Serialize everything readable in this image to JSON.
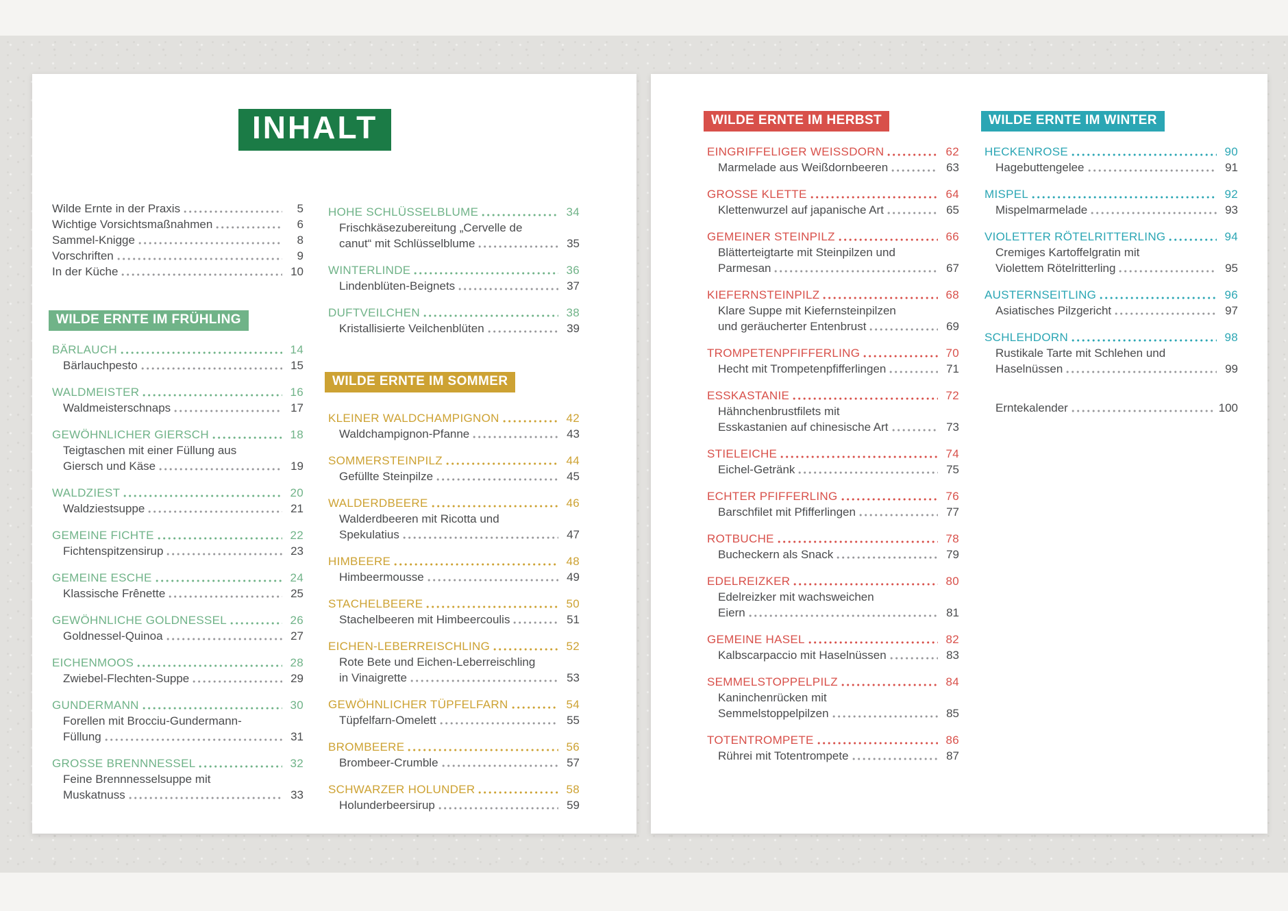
{
  "title": "INHALT",
  "colors": {
    "title_bg": "#1b7b46",
    "spring": "#70b388",
    "summer": "#cda233",
    "autumn": "#d8504a",
    "winter": "#2ba6b4",
    "body_text": "#4a4b4d",
    "recipe_dots": "#98989b"
  },
  "intro": {
    "items": [
      {
        "label": "Wilde Ernte in der Praxis",
        "page": "5"
      },
      {
        "label": "Wichtige Vorsichtsmaßnahmen",
        "page": "6"
      },
      {
        "label": "Sammel-Knigge",
        "page": "8"
      },
      {
        "label": "Vorschriften",
        "page": "9"
      },
      {
        "label": "In der Küche",
        "page": "10"
      }
    ]
  },
  "sections": [
    {
      "id": "fruehling",
      "title": "WILDE ERNTE IM FRÜHLING",
      "color": "#70b388",
      "entries": [
        {
          "name": "BÄRLAUCH",
          "page": "14",
          "recipes": [
            {
              "lines": [
                "Bärlauchpesto"
              ],
              "page": "15"
            }
          ]
        },
        {
          "name": "WALDMEISTER",
          "page": "16",
          "recipes": [
            {
              "lines": [
                "Waldmeisterschnaps"
              ],
              "page": "17"
            }
          ]
        },
        {
          "name": "GEWÖHNLICHER GIERSCH",
          "page": "18",
          "recipes": [
            {
              "lines": [
                "Teigtaschen mit einer Füllung aus",
                "Giersch und Käse"
              ],
              "page": "19"
            }
          ]
        },
        {
          "name": "WALDZIEST",
          "page": "20",
          "recipes": [
            {
              "lines": [
                "Waldziestsuppe"
              ],
              "page": "21"
            }
          ]
        },
        {
          "name": "GEMEINE FICHTE",
          "page": "22",
          "recipes": [
            {
              "lines": [
                "Fichtenspitzensirup"
              ],
              "page": "23"
            }
          ]
        },
        {
          "name": "GEMEINE ESCHE",
          "page": "24",
          "recipes": [
            {
              "lines": [
                "Klassische Frênette"
              ],
              "page": "25"
            }
          ]
        },
        {
          "name": "GEWÖHNLICHE GOLDNESSEL",
          "page": "26",
          "recipes": [
            {
              "lines": [
                "Goldnessel-Quinoa"
              ],
              "page": "27"
            }
          ]
        },
        {
          "name": "EICHENMOOS",
          "page": "28",
          "recipes": [
            {
              "lines": [
                "Zwiebel-Flechten-Suppe"
              ],
              "page": "29"
            }
          ]
        },
        {
          "name": "GUNDERMANN",
          "page": "30",
          "recipes": [
            {
              "lines": [
                "Forellen mit Brocciu-Gundermann-",
                "Füllung"
              ],
              "page": "31"
            }
          ]
        },
        {
          "name": "GROSSE BRENNNESSEL",
          "page": "32",
          "recipes": [
            {
              "lines": [
                "Feine Brennnesselsuppe mit",
                "Muskatnuss"
              ],
              "page": "33"
            }
          ]
        },
        {
          "name": "HOHE SCHLÜSSELBLUME",
          "page": "34",
          "recipes": [
            {
              "lines": [
                "Frischkäsezubereitung „Cervelle de",
                "canut“ mit Schlüsselblume"
              ],
              "page": "35"
            }
          ]
        },
        {
          "name": "WINTERLINDE",
          "page": "36",
          "recipes": [
            {
              "lines": [
                "Lindenblüten-Beignets"
              ],
              "page": "37"
            }
          ]
        },
        {
          "name": "DUFTVEILCHEN",
          "page": "38",
          "recipes": [
            {
              "lines": [
                "Kristallisierte Veilchenblüten"
              ],
              "page": "39"
            }
          ]
        }
      ]
    },
    {
      "id": "sommer",
      "title": "WILDE ERNTE IM SOMMER",
      "color": "#cda233",
      "entries": [
        {
          "name": "KLEINER WALDCHAMPIGNON",
          "page": "42",
          "recipes": [
            {
              "lines": [
                "Waldchampignon-Pfanne"
              ],
              "page": "43"
            }
          ]
        },
        {
          "name": "SOMMERSTEINPILZ",
          "page": "44",
          "recipes": [
            {
              "lines": [
                "Gefüllte Steinpilze"
              ],
              "page": "45"
            }
          ]
        },
        {
          "name": "WALDERDBEERE",
          "page": "46",
          "recipes": [
            {
              "lines": [
                "Walderdbeeren mit Ricotta und",
                "Spekulatius"
              ],
              "page": "47"
            }
          ]
        },
        {
          "name": "HIMBEERE",
          "page": "48",
          "recipes": [
            {
              "lines": [
                "Himbeermousse"
              ],
              "page": "49"
            }
          ]
        },
        {
          "name": "STACHELBEERE",
          "page": "50",
          "recipes": [
            {
              "lines": [
                "Stachelbeeren mit Himbeercoulis"
              ],
              "page": "51"
            }
          ]
        },
        {
          "name": "EICHEN-LEBERREISCHLING",
          "page": "52",
          "recipes": [
            {
              "lines": [
                "Rote Bete und Eichen-Leberreischling",
                "in Vinaigrette"
              ],
              "page": "53"
            }
          ]
        },
        {
          "name": "GEWÖHNLICHER TÜPFELFARN",
          "page": "54",
          "recipes": [
            {
              "lines": [
                "Tüpfelfarn-Omelett"
              ],
              "page": "55"
            }
          ]
        },
        {
          "name": "BROMBEERE",
          "page": "56",
          "recipes": [
            {
              "lines": [
                "Brombeer-Crumble"
              ],
              "page": "57"
            }
          ]
        },
        {
          "name": "SCHWARZER HOLUNDER",
          "page": "58",
          "recipes": [
            {
              "lines": [
                "Holunderbeersirup"
              ],
              "page": "59"
            }
          ]
        }
      ]
    },
    {
      "id": "herbst",
      "title": "WILDE ERNTE IM HERBST",
      "color": "#d8504a",
      "entries": [
        {
          "name": "EINGRIFFELIGER WEISSDORN",
          "page": "62",
          "recipes": [
            {
              "lines": [
                "Marmelade aus Weißdornbeeren"
              ],
              "page": "63"
            }
          ]
        },
        {
          "name": "GROSSE KLETTE",
          "page": "64",
          "recipes": [
            {
              "lines": [
                "Klettenwurzel auf japanische Art"
              ],
              "page": "65"
            }
          ]
        },
        {
          "name": "GEMEINER STEINPILZ",
          "page": "66",
          "recipes": [
            {
              "lines": [
                "Blätterteigtarte mit Steinpilzen und",
                "Parmesan"
              ],
              "page": "67"
            }
          ]
        },
        {
          "name": "KIEFERNSTEINPILZ",
          "page": "68",
          "recipes": [
            {
              "lines": [
                "Klare Suppe mit Kiefernsteinpilzen",
                "und geräucherter Entenbrust"
              ],
              "page": "69"
            }
          ]
        },
        {
          "name": "TROMPETENPFIFFERLING",
          "page": "70",
          "recipes": [
            {
              "lines": [
                "Hecht mit Trompetenpfifferlingen"
              ],
              "page": "71"
            }
          ]
        },
        {
          "name": "ESSKASTANIE",
          "page": "72",
          "recipes": [
            {
              "lines": [
                "Hähnchenbrustfilets mit",
                "Esskastanien auf chinesische Art"
              ],
              "page": "73"
            }
          ]
        },
        {
          "name": "STIELEICHE",
          "page": "74",
          "recipes": [
            {
              "lines": [
                "Eichel-Getränk"
              ],
              "page": "75"
            }
          ]
        },
        {
          "name": "ECHTER PFIFFERLING",
          "page": "76",
          "recipes": [
            {
              "lines": [
                "Barschfilet mit Pfifferlingen"
              ],
              "page": "77"
            }
          ]
        },
        {
          "name": "ROTBUCHE",
          "page": "78",
          "recipes": [
            {
              "lines": [
                "Bucheckern als Snack"
              ],
              "page": "79"
            }
          ]
        },
        {
          "name": "EDELREIZKER",
          "page": "80",
          "recipes": [
            {
              "lines": [
                "Edelreizker mit wachsweichen",
                "Eiern"
              ],
              "page": "81"
            }
          ]
        },
        {
          "name": "GEMEINE HASEL",
          "page": "82",
          "recipes": [
            {
              "lines": [
                "Kalbscarpaccio mit Haselnüssen"
              ],
              "page": "83"
            }
          ]
        },
        {
          "name": "SEMMELSTOPPELPILZ",
          "page": "84",
          "recipes": [
            {
              "lines": [
                "Kaninchenrücken mit",
                "Semmelstoppelpilzen"
              ],
              "page": "85"
            }
          ]
        },
        {
          "name": "TOTENTROMPETE",
          "page": "86",
          "recipes": [
            {
              "lines": [
                "Rührei mit Totentrompete"
              ],
              "page": "87"
            }
          ]
        }
      ]
    },
    {
      "id": "winter",
      "title": "WILDE ERNTE IM WINTER",
      "color": "#2ba6b4",
      "entries": [
        {
          "name": "HECKENROSE",
          "page": "90",
          "recipes": [
            {
              "lines": [
                "Hagebuttengelee"
              ],
              "page": "91"
            }
          ]
        },
        {
          "name": "MISPEL",
          "page": "92",
          "recipes": [
            {
              "lines": [
                "Mispelmarmelade"
              ],
              "page": "93"
            }
          ]
        },
        {
          "name": "VIOLETTER RÖTELRITTERLING",
          "page": "94",
          "recipes": [
            {
              "lines": [
                "Cremiges Kartoffelgratin mit",
                "Violettem Rötelritterling"
              ],
              "page": "95"
            }
          ]
        },
        {
          "name": "AUSTERNSEITLING",
          "page": "96",
          "recipes": [
            {
              "lines": [
                "Asiatisches Pilzgericht"
              ],
              "page": "97"
            }
          ]
        },
        {
          "name": "SCHLEHDORN",
          "page": "98",
          "recipes": [
            {
              "lines": [
                "Rustikale Tarte mit Schlehen und",
                "Haselnüssen"
              ],
              "page": "99"
            }
          ]
        }
      ]
    }
  ],
  "outro": {
    "label": "Erntekalender",
    "page": "100"
  }
}
